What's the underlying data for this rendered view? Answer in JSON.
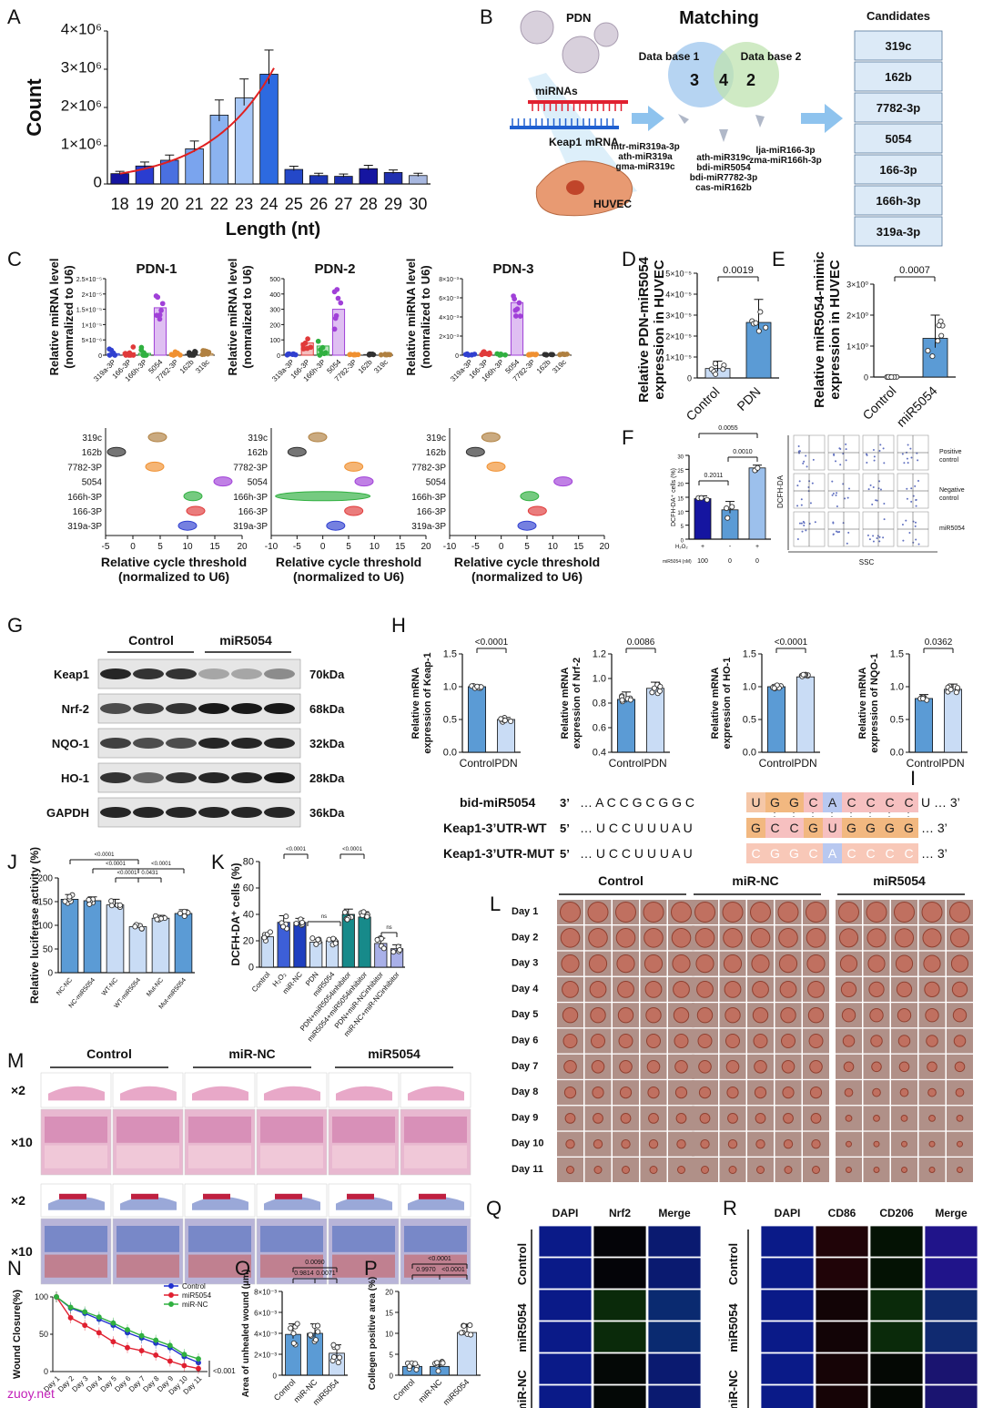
{
  "panels": {
    "A": {
      "label": "A",
      "title": "",
      "xlabel": "Length (nt)",
      "ylabel": "Count",
      "yticks": [
        "0",
        "1×10⁶",
        "2×10⁶",
        "3×10⁶",
        "4×10⁶"
      ]
    },
    "B": {
      "label": "B",
      "pdn": "PDN",
      "matching": "Matching",
      "db1": "Data base 1",
      "db2": "Data base 2",
      "n1": "3",
      "n12": "4",
      "n2": "2",
      "mirnas": "miRNAs",
      "keap1": "Keap1",
      "mrna": "mRNA",
      "huvec": "HUVEC",
      "list1": [
        "mtr-miR319a-3p",
        "ath-miR319a",
        "gma-miR319c"
      ],
      "list2": [
        "ath-miR319c",
        "bdi-miR5054",
        "bdi-miR7782-3p",
        "cas-miR162b"
      ],
      "list3": [
        "lja-miR166-3p",
        "zma-miR166h-3p"
      ],
      "cand_title": "Candidates",
      "candidates": [
        "319c",
        "162b",
        "7782-3p",
        "5054",
        "166-3p",
        "166h-3p",
        "319a-3p"
      ]
    },
    "C": {
      "label": "C",
      "titles": [
        "PDN-1",
        "PDN-2",
        "PDN-3"
      ],
      "ylabel": "Relative miRNA level (nomralized to U6)",
      "xcats": [
        "319a-3P",
        "166-3P",
        "166h-3P",
        "5054",
        "7782-3P",
        "162b",
        "319c"
      ],
      "yticks1": [
        "0",
        "5×10⁻⁶",
        "1×10⁻⁵",
        "1.5×10⁻⁵",
        "2×10⁻⁵",
        "2.5×10⁻⁵"
      ],
      "yticks2": [
        "0",
        "100",
        "200",
        "300",
        "400",
        "500"
      ],
      "yticks3": [
        "0",
        "2×10⁻³",
        "4×10⁻³",
        "6×10⁻³",
        "8×10⁻³"
      ],
      "vrows": [
        "319c",
        "162b",
        "7782-3P",
        "5054",
        "166h-3P",
        "166-3P",
        "319a-3P"
      ],
      "vxlabel": "Relative cycle threshold (normalized to U6)",
      "vxt1": [
        "-5",
        "0",
        "5",
        "10",
        "15",
        "20"
      ],
      "vxt2": [
        "-10",
        "-5",
        "0",
        "5",
        "10",
        "15",
        "20"
      ],
      "vxt3": [
        "-10",
        "-5",
        "0",
        "5",
        "10",
        "15",
        "20"
      ]
    },
    "D": {
      "label": "D",
      "ylabel": "Relative PDN-miR5054 expression in HUVEC",
      "p": "0.0019",
      "cats": [
        "Control",
        "PDN"
      ],
      "yticks": [
        "0",
        "1×10⁻⁵",
        "2×10⁻⁵",
        "3×10⁻⁵",
        "4×10⁻⁵",
        "5×10⁻⁵"
      ]
    },
    "E": {
      "label": "E",
      "ylabel": "Relative miR5054-mimic expression in HUVEC",
      "p": "0.0007",
      "cats": [
        "Control",
        "miR5054"
      ],
      "yticks": [
        "0",
        "1×10⁰",
        "2×10⁰",
        "3×10⁰"
      ]
    },
    "F": {
      "label": "F",
      "ylabel": "DCFH-DA⁺ cells (%)",
      "p1": "0.0055",
      "p2": "0.2011",
      "p3": "0.0010",
      "h2o2": "H₂O₂",
      "h2o2vals": [
        "+",
        "-",
        "+"
      ],
      "mir": "miR5054 (nM)",
      "mirvals": [
        "100",
        "0",
        "0"
      ],
      "yticks": [
        "0",
        "5",
        "10",
        "15",
        "20",
        "25",
        "30"
      ],
      "flow_y": "DCFH-DA",
      "flow_x": "SSC",
      "rows": [
        "Positive control",
        "Negative control",
        "miR5054"
      ]
    },
    "G": {
      "label": "G",
      "groups": [
        "Control",
        "miR5054"
      ],
      "proteins": [
        "Keap1",
        "Nrf-2",
        "NQO-1",
        "HO-1",
        "GAPDH"
      ],
      "kda": [
        "70kDa",
        "68kDa",
        "32kDa",
        "28kDa",
        "36kDa"
      ]
    },
    "H": {
      "label": "H",
      "cats": [
        "Control",
        "PDN"
      ],
      "plots": [
        {
          "ylabel": "Relative mRNA expression of Keap-1",
          "p": "<0.0001",
          "yt": [
            "0.0",
            "0.5",
            "1.0",
            "1.5"
          ]
        },
        {
          "ylabel": "Relative mRNA expression of Nrf-2",
          "p": "0.0086",
          "yt": [
            "0.4",
            "0.6",
            "0.8",
            "1.0",
            "1.2"
          ]
        },
        {
          "ylabel": "Relative mRNA expression of HO-1",
          "p": "<0.0001",
          "yt": [
            "0.0",
            "0.5",
            "1.0",
            "1.5"
          ]
        },
        {
          "ylabel": "Relative mRNA expression of NQO-1",
          "p": "0.0362",
          "yt": [
            "0.0",
            "0.5",
            "1.0",
            "1.5"
          ]
        }
      ]
    },
    "I": {
      "label": "I",
      "rows": [
        {
          "name": "bid-miR5054",
          "p5": "3’",
          "left": "… A C C G C G G C",
          "bases": [
            "U",
            "G",
            "G",
            "C",
            "A",
            "C",
            "C",
            "C",
            "C"
          ],
          "tail": "U … 3’"
        },
        {
          "name": "Keap1-3’UTR-WT",
          "p5": "5’",
          "left": "… U C C U U U A U",
          "bases": [
            "G",
            "C",
            "C",
            "G",
            "U",
            "G",
            "G",
            "G",
            "G"
          ],
          "tail": "… 3’"
        },
        {
          "name": "Keap1-3’UTR-MUT",
          "p5": "5’",
          "left": "… U C C U U U A U",
          "bases": [
            "C",
            "G",
            "G",
            "C",
            "A",
            "C",
            "C",
            "C",
            "C"
          ],
          "tail": "… 3’"
        }
      ]
    },
    "J": {
      "label": "J",
      "ylabel": "Relative luciferase activity (%)",
      "cats": [
        "NC-NC",
        "NC-miR5054",
        "WT-NC",
        "WT-miR5054",
        "Mut-NC",
        "Mut-miR5054"
      ],
      "yticks": [
        "0",
        "50",
        "100",
        "150",
        "200"
      ],
      "p": [
        "<0.0001",
        "<0.0001",
        "<0.0001",
        "0.0431",
        "<0.0001"
      ]
    },
    "K": {
      "label": "K",
      "ylabel": "DCFH-DA⁺ cells (%)",
      "cats": [
        "Control",
        "H₂O₂",
        "miR-NC",
        "PDN",
        "miR5054",
        "PDN+miR5054inhibitor",
        "miR5054+miR5054inhibitor",
        "PDN+miR-NCinhibitor",
        "miR-NC+miR-NCinhibitor"
      ],
      "yticks": [
        "0",
        "20",
        "40",
        "60",
        "80"
      ],
      "p": [
        "<0.0001",
        "<0.0001",
        "ns",
        "ns"
      ]
    },
    "L": {
      "label": "L",
      "groups": [
        "Control",
        "miR-NC",
        "miR5054"
      ],
      "days": [
        "Day 1",
        "Day 2",
        "Day 3",
        "Day 4",
        "Day 5",
        "Day 6",
        "Day 7",
        "Day 8",
        "Day 9",
        "Day 10",
        "Day 11"
      ]
    },
    "M": {
      "label": "M",
      "groups": [
        "Control",
        "miR-NC",
        "miR5054"
      ],
      "rows": [
        "×2",
        "×10",
        "×2",
        "×10"
      ]
    },
    "N": {
      "label": "N",
      "ylabel": "Wound Closure(%)",
      "yticks": [
        "0",
        "50",
        "100"
      ],
      "days": [
        "Day 1",
        "Day 2",
        "Day 3",
        "Day 4",
        "Day 5",
        "Day 6",
        "Day 7",
        "Day 8",
        "Day 9",
        "Day 10",
        "Day 11"
      ],
      "legend": [
        "Control",
        "miR5054",
        "miR-NC"
      ],
      "p": "<0.001"
    },
    "O": {
      "label": "O",
      "ylabel": "Area of unhealed wound (μm)",
      "cats": [
        "Control",
        "miR-NC",
        "miR5054"
      ],
      "yticks": [
        "0",
        "2×10⁻³",
        "4×10⁻³",
        "6×10⁻³",
        "8×10⁻³"
      ],
      "p": [
        "0.0090",
        "0.9814",
        "0.0071"
      ]
    },
    "P": {
      "label": "P",
      "ylabel": "Collegen positive area (%)",
      "cats": [
        "Control",
        "miR-NC",
        "miR5054"
      ],
      "yticks": [
        "0",
        "5",
        "10",
        "15",
        "20"
      ],
      "p": [
        "<0.0001",
        "0.9970",
        "<0.0001"
      ]
    },
    "Q": {
      "label": "Q",
      "cols": [
        "DAPI",
        "Nrf2",
        "Merge"
      ],
      "rows": [
        "Control",
        "miR5054",
        "miR-NC"
      ]
    },
    "R": {
      "label": "R",
      "cols": [
        "DAPI",
        "CD86",
        "CD206",
        "Merge"
      ],
      "rows": [
        "Control",
        "miR5054",
        "miR-NC"
      ]
    }
  },
  "watermark": "zuoy.net",
  "chart_data": [
    {
      "panel": "A",
      "type": "bar",
      "xlabel": "Length (nt)",
      "ylabel": "Count",
      "ylim": [
        0,
        4000000
      ],
      "categories": [
        "18",
        "19",
        "20",
        "21",
        "22",
        "23",
        "24",
        "25",
        "26",
        "27",
        "28",
        "29",
        "30"
      ],
      "values": [
        270000,
        470000,
        620000,
        920000,
        1800000,
        2250000,
        2870000,
        380000,
        220000,
        200000,
        400000,
        300000,
        220000
      ]
    },
    {
      "panel": "D",
      "type": "bar",
      "categories": [
        "Control",
        "PDN"
      ],
      "values": [
        0.45,
        2.65
      ],
      "ylim": [
        0,
        5
      ]
    },
    {
      "panel": "E",
      "type": "bar",
      "categories": [
        "Control",
        "miR5054"
      ],
      "values": [
        0.0,
        1.25
      ],
      "ylim": [
        0,
        3
      ]
    },
    {
      "panel": "F",
      "type": "bar",
      "categories": [
        "1",
        "2",
        "3"
      ],
      "values": [
        14.5,
        10.5,
        25.5
      ],
      "ylim": [
        0,
        30
      ]
    },
    {
      "panel": "H1",
      "type": "bar",
      "categories": [
        "Control",
        "PDN"
      ],
      "values": [
        1.0,
        0.5
      ],
      "ylim": [
        0,
        1.5
      ]
    },
    {
      "panel": "H2",
      "type": "bar",
      "categories": [
        "Control",
        "PDN"
      ],
      "values": [
        0.83,
        0.92
      ],
      "ylim": [
        0.4,
        1.2
      ]
    },
    {
      "panel": "H3",
      "type": "bar",
      "categories": [
        "Control",
        "PDN"
      ],
      "values": [
        1.0,
        1.15
      ],
      "ylim": [
        0,
        1.5
      ]
    },
    {
      "panel": "H4",
      "type": "bar",
      "categories": [
        "Control",
        "PDN"
      ],
      "values": [
        0.82,
        0.96
      ],
      "ylim": [
        0,
        1.5
      ]
    },
    {
      "panel": "J",
      "type": "bar",
      "categories": [
        "NC-NC",
        "NC-miR5054",
        "WT-NC",
        "WT-miR5054",
        "Mut-NC",
        "Mut-miR5054"
      ],
      "values": [
        155,
        152,
        143,
        97,
        115,
        125
      ],
      "ylim": [
        0,
        200
      ]
    },
    {
      "panel": "K",
      "type": "bar",
      "categories": [
        "Control",
        "H₂O₂",
        "miR-NC",
        "PDN",
        "miR5054",
        "PDN+miR5054inhibitor",
        "miR5054+miR5054inhibitor",
        "PDN+miR-NCinhibitor",
        "miR-NC+miR-NCinhibitor"
      ],
      "values": [
        23,
        34,
        34,
        19,
        20,
        40,
        38,
        18,
        14
      ],
      "ylim": [
        0,
        80
      ]
    },
    {
      "panel": "N",
      "type": "line",
      "x": [
        1,
        2,
        3,
        4,
        5,
        6,
        7,
        8,
        9,
        10,
        11
      ],
      "ylim": [
        0,
        100
      ],
      "series": [
        {
          "name": "Control",
          "values": [
            100,
            85,
            78,
            70,
            62,
            52,
            45,
            38,
            32,
            20,
            12
          ]
        },
        {
          "name": "miR5054",
          "values": [
            100,
            72,
            62,
            52,
            40,
            32,
            28,
            22,
            14,
            8,
            4
          ]
        },
        {
          "name": "miR-NC",
          "values": [
            100,
            86,
            80,
            73,
            65,
            56,
            48,
            42,
            35,
            23,
            17
          ]
        }
      ]
    },
    {
      "panel": "O",
      "type": "bar",
      "categories": [
        "Control",
        "miR-NC",
        "miR5054"
      ],
      "values": [
        3.9,
        4.0,
        2.1
      ],
      "ylim": [
        0,
        8
      ]
    },
    {
      "panel": "P",
      "type": "bar",
      "categories": [
        "Control",
        "miR-NC",
        "miR5054"
      ],
      "values": [
        2.1,
        2.1,
        10.2
      ],
      "ylim": [
        0,
        20
      ]
    }
  ],
  "colors": {
    "light": "#c9dcf5",
    "mid": "#5b9bd5",
    "dark": "#1f3fbf",
    "navy": "#1515a0",
    "violin_purple": "#a040d8",
    "red": "#e03030",
    "green": "#30b040",
    "blue": "#2040d0"
  }
}
